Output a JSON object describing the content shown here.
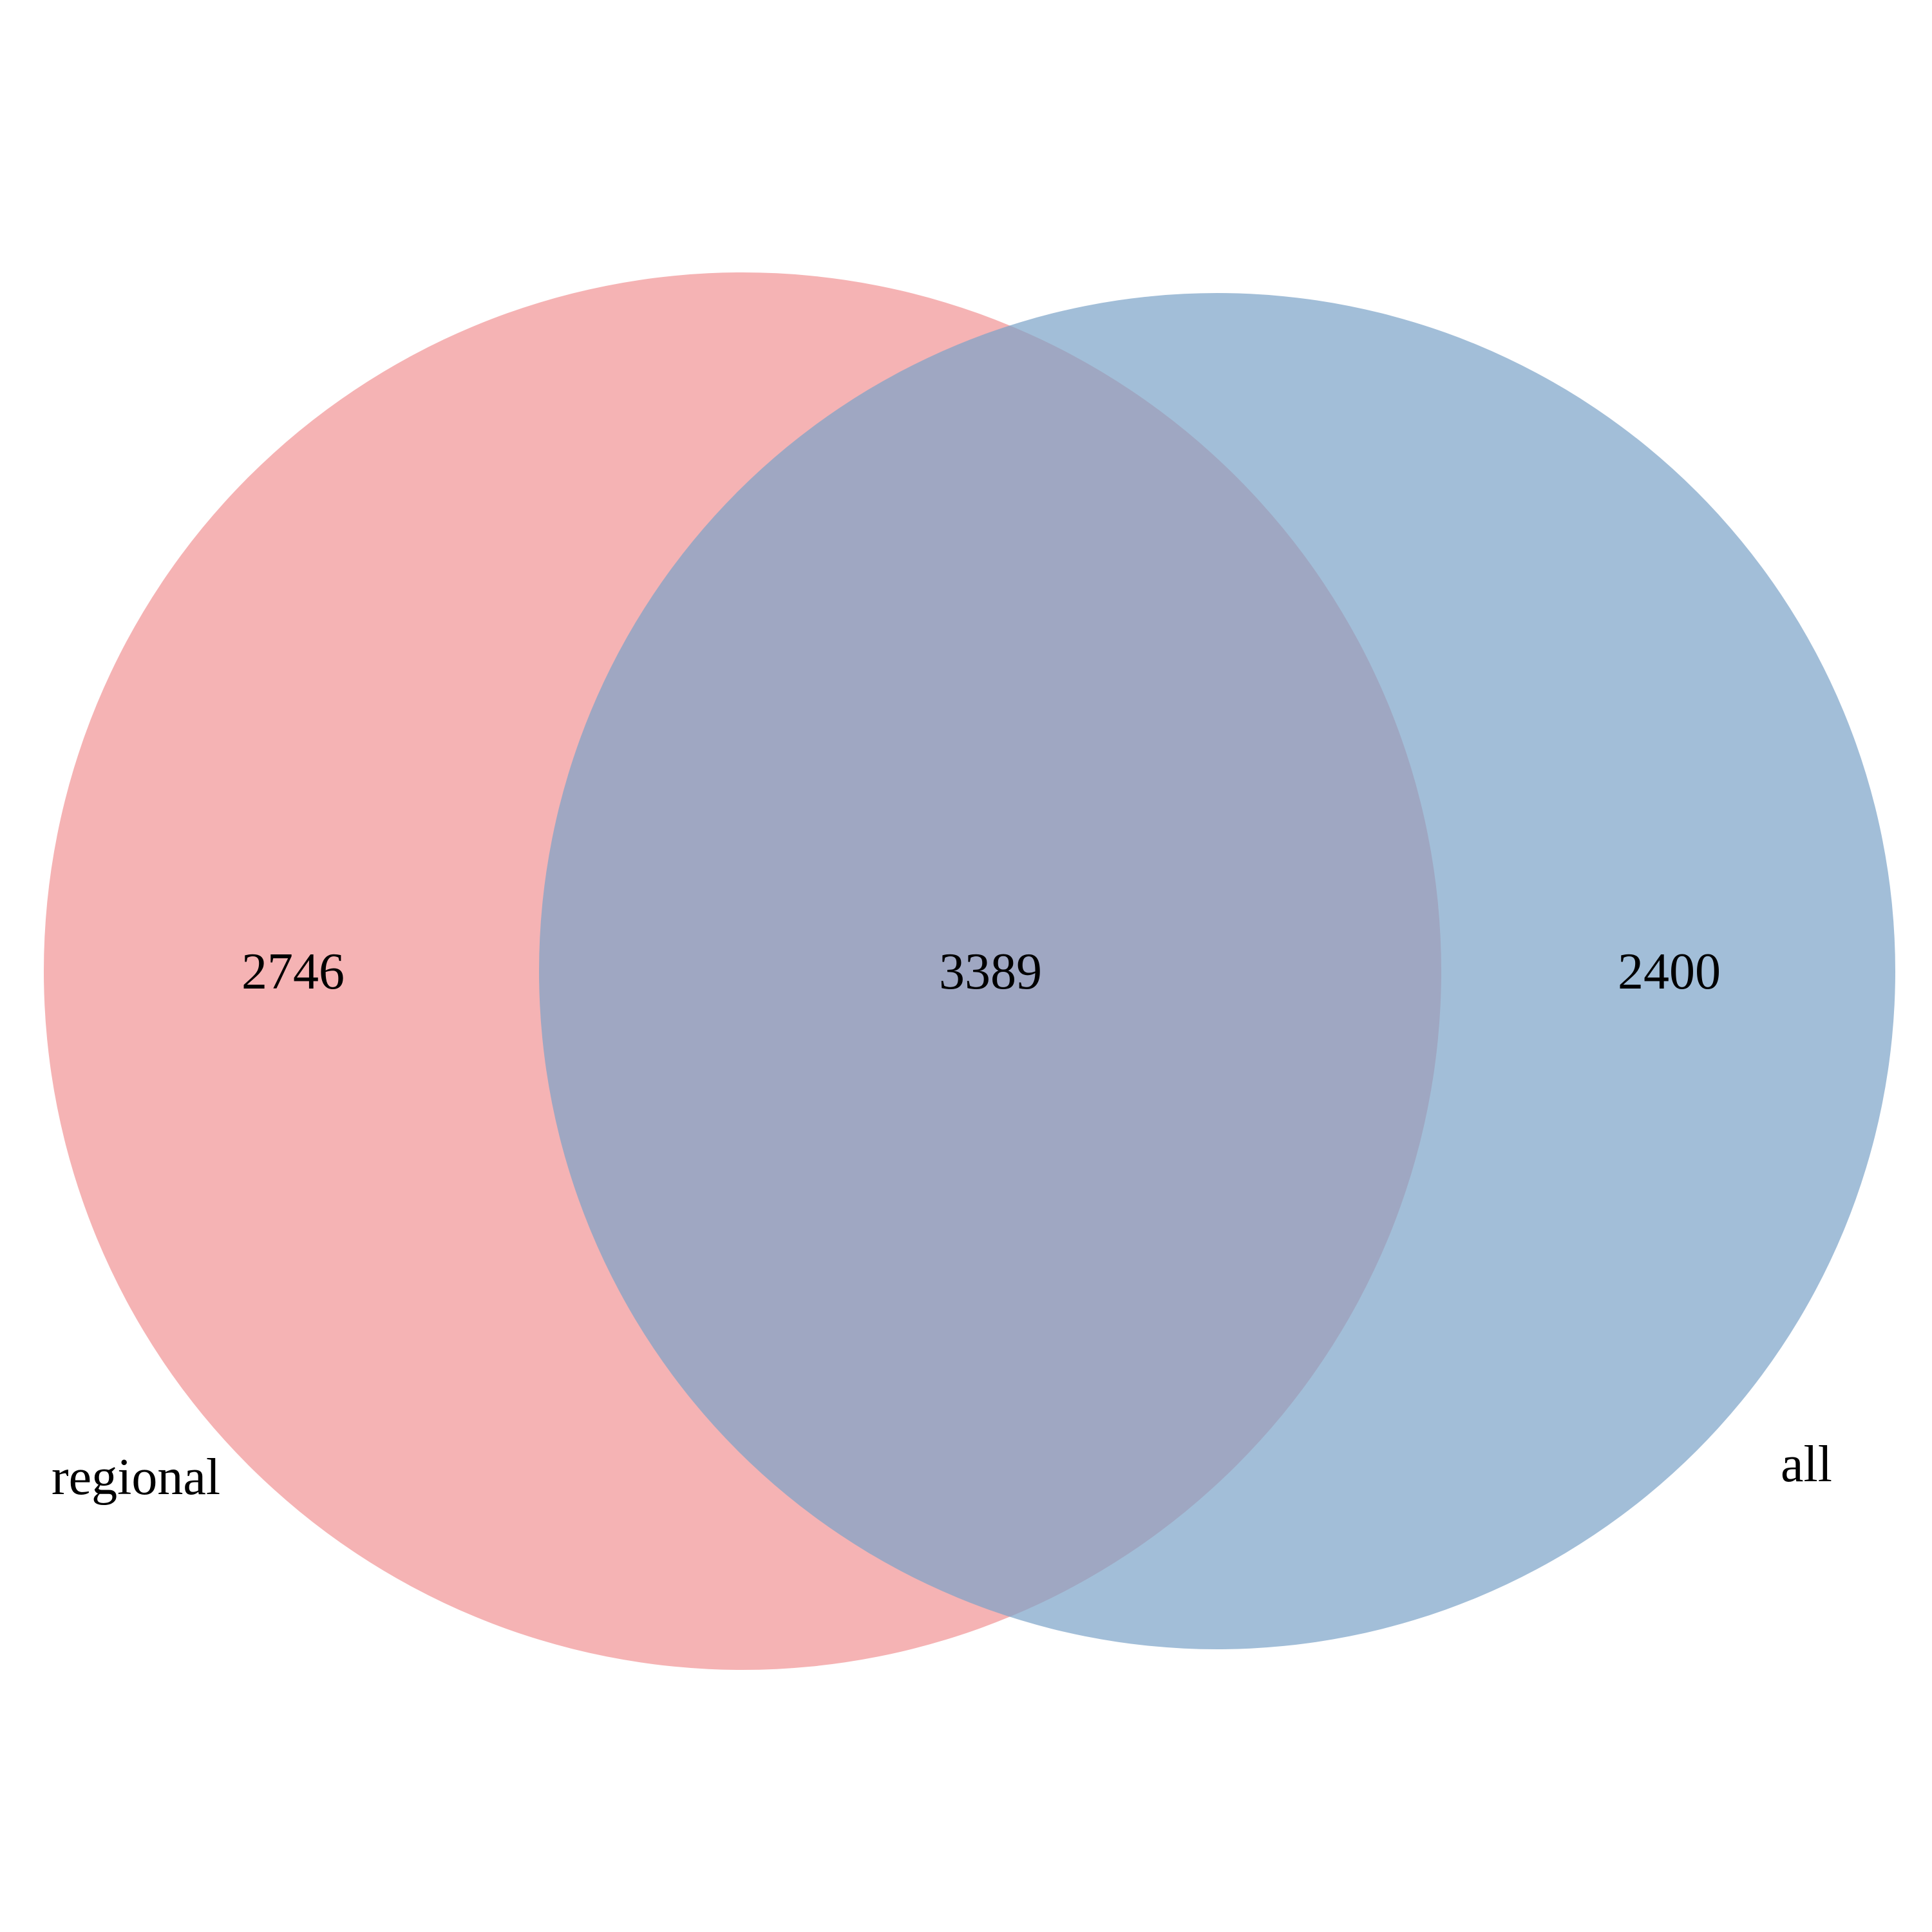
{
  "venn": {
    "sets": [
      {
        "name": "regional",
        "color": "#f08a8c",
        "opacity": 0.65
      },
      {
        "name": "all",
        "color": "#7ba3c8",
        "opacity": 0.7
      }
    ],
    "counts": {
      "regional_only": "2746",
      "both": "3389",
      "all_only": "2400"
    }
  }
}
